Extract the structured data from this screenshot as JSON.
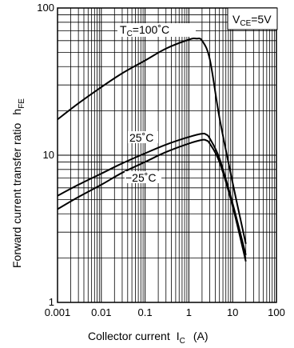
{
  "chart_data": {
    "type": "line",
    "title": "",
    "xlabel": {
      "main": "Collector current",
      "symbol": "I",
      "sub": "C",
      "unit": "(A)"
    },
    "ylabel": {
      "main": "Forward current transfer ratio",
      "symbol": "h",
      "sub": "FE"
    },
    "x_scale": "log",
    "y_scale": "log",
    "xlim": [
      0.001,
      100
    ],
    "ylim": [
      1,
      100
    ],
    "x_ticks": [
      {
        "value": 0.001,
        "label": "0.001"
      },
      {
        "value": 0.01,
        "label": "0.01"
      },
      {
        "value": 0.1,
        "label": "0.1"
      },
      {
        "value": 1,
        "label": "1"
      },
      {
        "value": 10,
        "label": "10"
      },
      {
        "value": 100,
        "label": "100"
      }
    ],
    "y_ticks": [
      {
        "value": 1,
        "label": "1"
      },
      {
        "value": 10,
        "label": "10"
      },
      {
        "value": 100,
        "label": "100"
      }
    ],
    "grid": true,
    "condition": {
      "symbol": "V",
      "sub": "CE",
      "rest": "=5V"
    },
    "series": [
      {
        "label": {
          "symbol": "T",
          "sub": "C",
          "rest": "=100˚C"
        },
        "x": [
          0.001,
          0.003,
          0.01,
          0.03,
          0.1,
          0.3,
          1,
          1.5,
          2,
          3,
          5,
          10,
          20
        ],
        "y": [
          17.5,
          22.5,
          29,
          36,
          44,
          53,
          61,
          62,
          60,
          45,
          18,
          6.5,
          2.5
        ]
      },
      {
        "label": {
          "symbol": "",
          "sub": "",
          "rest": "25˚C"
        },
        "x": [
          0.001,
          0.003,
          0.01,
          0.03,
          0.1,
          0.3,
          1,
          2,
          2.5,
          3,
          5,
          10,
          20
        ],
        "y": [
          5.3,
          6.3,
          7.5,
          8.8,
          10.3,
          11.8,
          13.3,
          14,
          13.8,
          13,
          9.5,
          4.7,
          2.1
        ]
      },
      {
        "label": {
          "symbol": "",
          "sub": "",
          "rest": "−25˚C"
        },
        "x": [
          0.001,
          0.003,
          0.01,
          0.03,
          0.1,
          0.3,
          1,
          2,
          2.5,
          3,
          5,
          10,
          20
        ],
        "y": [
          4.3,
          5.2,
          6.3,
          7.6,
          9,
          10.5,
          12,
          12.7,
          12.6,
          12,
          9,
          4.5,
          1.9
        ]
      }
    ]
  }
}
